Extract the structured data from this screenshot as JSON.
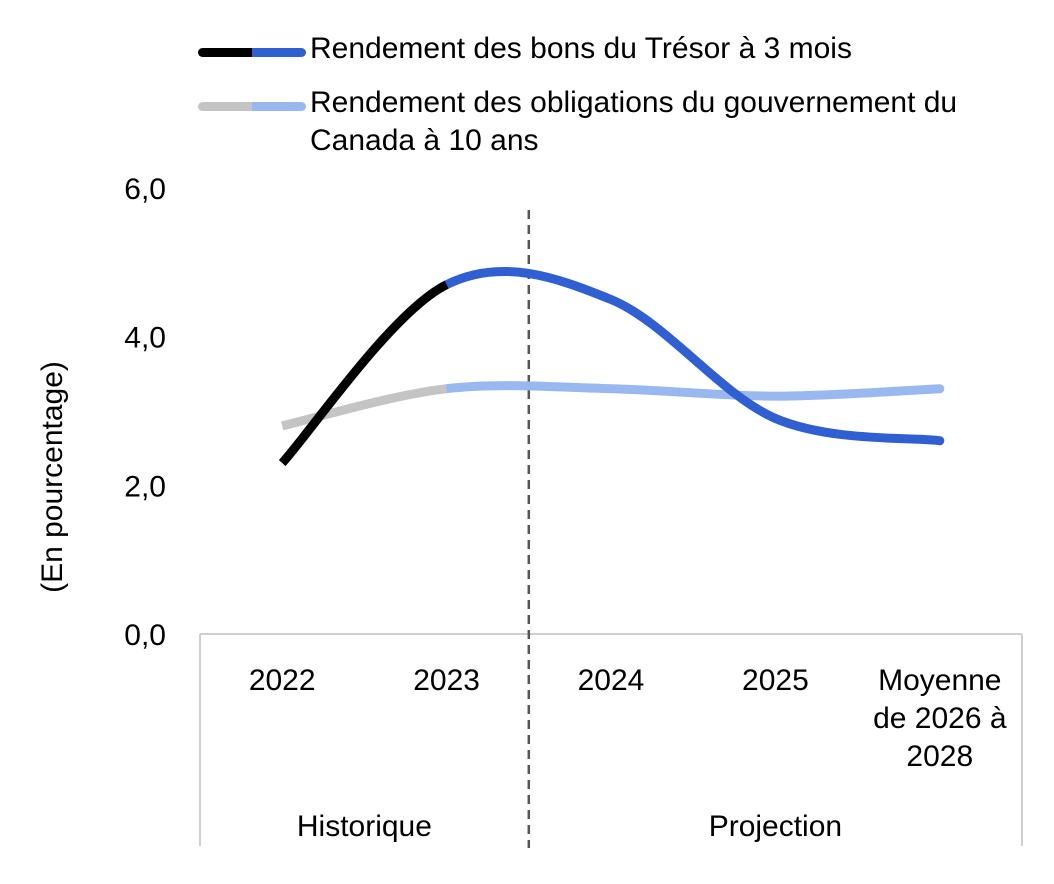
{
  "chart_data": {
    "type": "line",
    "ylabel": "(En pourcentage)",
    "ylim": [
      0,
      6
    ],
    "yticks": [
      "0,0",
      "2,0",
      "4,0",
      "6,0"
    ],
    "categories": [
      "2022",
      "2023",
      "2024",
      "2025",
      "Moyenne de 2026 à 2028"
    ],
    "groups": [
      {
        "label": "Historique",
        "categories": [
          "2022",
          "2023"
        ]
      },
      {
        "label": "Projection",
        "categories": [
          "2024",
          "2025",
          "Moyenne de 2026 à 2028"
        ]
      }
    ],
    "series": [
      {
        "name": "Rendement des bons du Trésor à 3 mois",
        "values": [
          2.3,
          4.7,
          4.5,
          2.9,
          2.6
        ],
        "color_historical": "#000000",
        "color_projection": "#2f5fd0"
      },
      {
        "name": "Rendement des obligations du gouvernement du Canada à 10 ans",
        "values": [
          2.8,
          3.3,
          3.3,
          3.2,
          3.3
        ],
        "color_historical": "#c4c4c4",
        "color_projection": "#98b8ef"
      }
    ],
    "legend_position": "top",
    "grid": false
  }
}
